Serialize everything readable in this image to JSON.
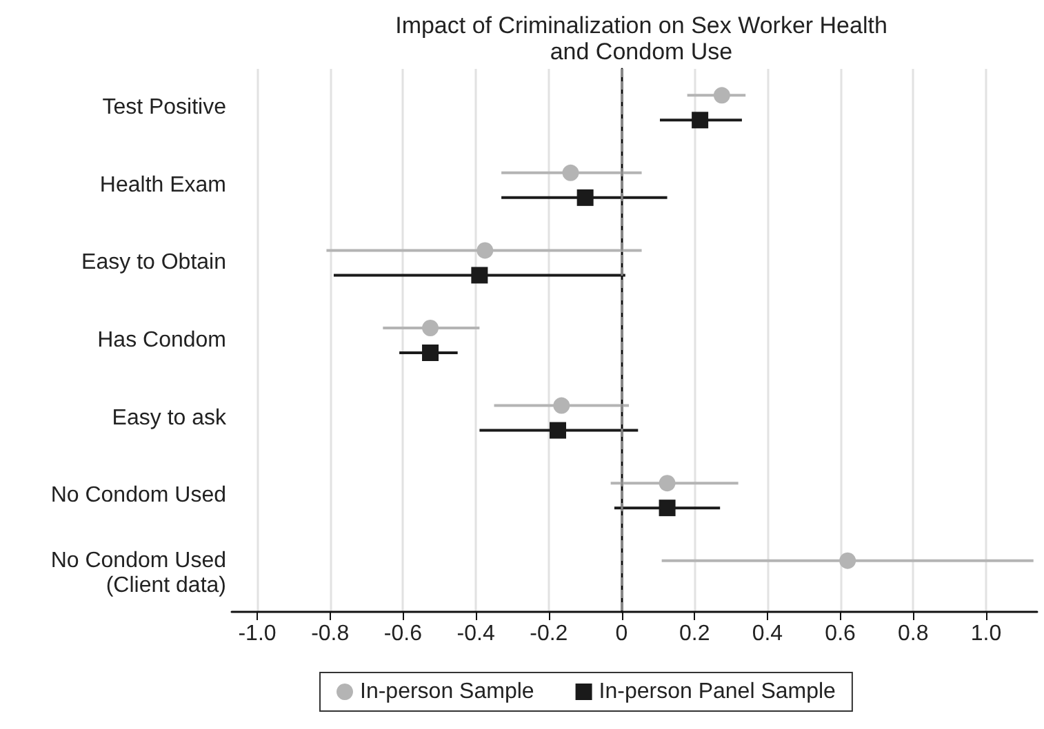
{
  "chart_data": {
    "type": "scatter",
    "title": "Impact of Criminalization on Sex Worker Health\nand Condom Use",
    "categories": [
      "Test Positive",
      "Health Exam",
      "Easy to Obtain",
      "Has Condom",
      "Easy to ask",
      "No Condom Used",
      "No Condom Used\n(Client data)"
    ],
    "orientation": "horizontal",
    "series": [
      {
        "name": "In-person Sample",
        "color": "#b4b4b4",
        "marker": "circle",
        "values": [
          0.275,
          -0.14,
          -0.375,
          -0.525,
          -0.165,
          0.125,
          0.62
        ],
        "errors": [
          [
            0.18,
            0.34
          ],
          [
            -0.33,
            0.055
          ],
          [
            -0.81,
            0.055
          ],
          [
            -0.655,
            -0.39
          ],
          [
            -0.35,
            0.02
          ],
          [
            -0.03,
            0.32
          ],
          [
            0.11,
            1.13
          ]
        ]
      },
      {
        "name": "In-person Panel Sample",
        "color": "#1a1a1a",
        "marker": "square",
        "values": [
          0.215,
          -0.1,
          -0.39,
          -0.525,
          -0.175,
          0.125,
          null
        ],
        "errors": [
          [
            0.105,
            0.33
          ],
          [
            -0.33,
            0.125
          ],
          [
            -0.79,
            0.01
          ],
          [
            -0.61,
            -0.45
          ],
          [
            -0.39,
            0.045
          ],
          [
            -0.02,
            0.27
          ],
          null
        ]
      }
    ],
    "xlim": [
      -1.07,
      1.14
    ],
    "xticks": [
      {
        "value": -1,
        "label": "-1.0"
      },
      -0.8,
      -0.6,
      -0.4,
      -0.2,
      0,
      0.2,
      0.4,
      0.6,
      0.8,
      {
        "value": 1,
        "label": "1.0"
      }
    ],
    "ref_lines": [
      {
        "axis": "x",
        "value": 0,
        "label": null,
        "color": "#888888",
        "line_style": "dashed"
      }
    ],
    "grid": "x",
    "legend": "bottom"
  }
}
